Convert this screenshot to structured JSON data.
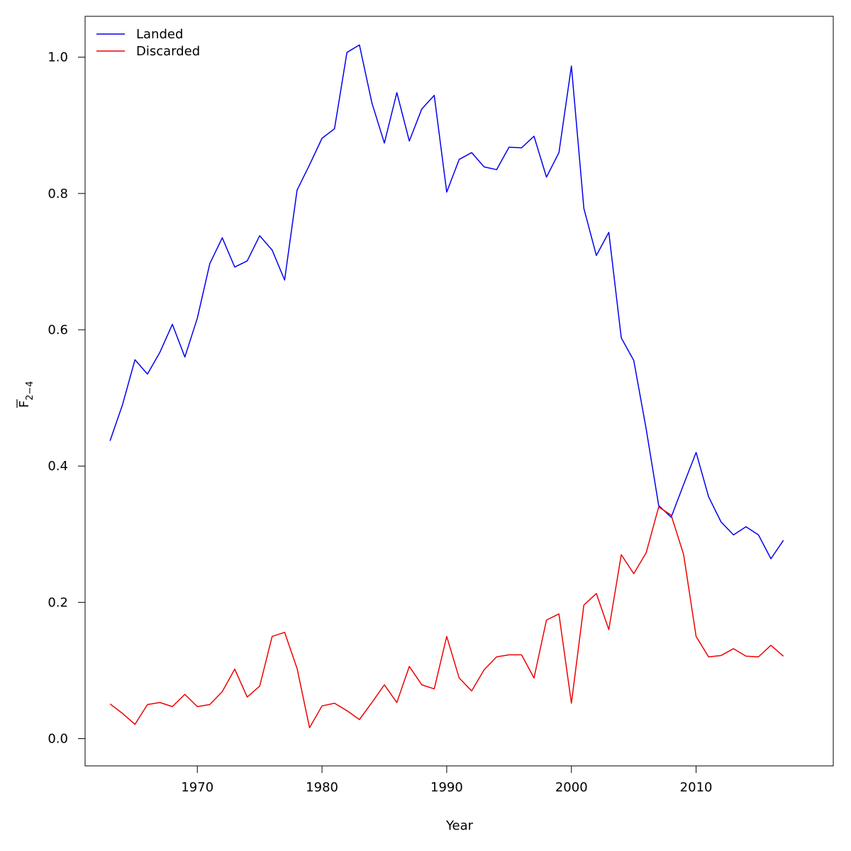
{
  "chart_data": {
    "type": "line",
    "xlabel": "Year",
    "ylabel": {
      "main": "F",
      "sub": "2−4",
      "overline": true
    },
    "xlim": [
      1961,
      2021
    ],
    "ylim": [
      -0.04,
      1.06
    ],
    "xticks": [
      1970,
      1980,
      1990,
      2000,
      2010
    ],
    "yticks": [
      0.0,
      0.2,
      0.4,
      0.6,
      0.8,
      1.0
    ],
    "ytick_labels": [
      "0.0",
      "0.2",
      "0.4",
      "0.6",
      "0.8",
      "1.0"
    ],
    "legend_position": "top-left",
    "grid": false,
    "x": [
      1963,
      1964,
      1965,
      1966,
      1967,
      1968,
      1969,
      1970,
      1971,
      1972,
      1973,
      1974,
      1975,
      1976,
      1977,
      1978,
      1979,
      1980,
      1981,
      1982,
      1983,
      1984,
      1985,
      1986,
      1987,
      1988,
      1989,
      1990,
      1991,
      1992,
      1993,
      1994,
      1995,
      1996,
      1997,
      1998,
      1999,
      2000,
      2001,
      2002,
      2003,
      2004,
      2005,
      2006,
      2007,
      2008,
      2009,
      2010,
      2011,
      2012,
      2013,
      2014,
      2015,
      2016,
      2017
    ],
    "series": [
      {
        "name": "Landed",
        "color": "#0000ee",
        "values": [
          0.437,
          0.49,
          0.556,
          0.535,
          0.567,
          0.608,
          0.56,
          0.617,
          0.697,
          0.735,
          0.692,
          0.701,
          0.738,
          0.717,
          0.673,
          0.805,
          0.842,
          0.881,
          0.895,
          1.007,
          1.018,
          0.933,
          0.874,
          0.948,
          0.877,
          0.924,
          0.944,
          0.802,
          0.85,
          0.86,
          0.839,
          0.835,
          0.868,
          0.867,
          0.884,
          0.824,
          0.86,
          0.987,
          0.778,
          0.709,
          0.743,
          0.588,
          0.555,
          0.454,
          0.342,
          0.325,
          0.373,
          0.42,
          0.355,
          0.318,
          0.299,
          0.311,
          0.299,
          0.264,
          0.291
        ]
      },
      {
        "name": "Discarded",
        "color": "#ee0000",
        "values": [
          0.051,
          0.037,
          0.021,
          0.05,
          0.053,
          0.047,
          0.065,
          0.047,
          0.05,
          0.069,
          0.102,
          0.061,
          0.077,
          0.15,
          0.156,
          0.103,
          0.016,
          0.048,
          0.052,
          0.041,
          0.028,
          0.053,
          0.079,
          0.053,
          0.106,
          0.079,
          0.073,
          0.15,
          0.089,
          0.07,
          0.101,
          0.12,
          0.123,
          0.123,
          0.089,
          0.174,
          0.183,
          0.052,
          0.196,
          0.213,
          0.16,
          0.27,
          0.242,
          0.273,
          0.34,
          0.328,
          0.27,
          0.15,
          0.12,
          0.122,
          0.132,
          0.121,
          0.12,
          0.137,
          0.121
        ]
      }
    ]
  }
}
